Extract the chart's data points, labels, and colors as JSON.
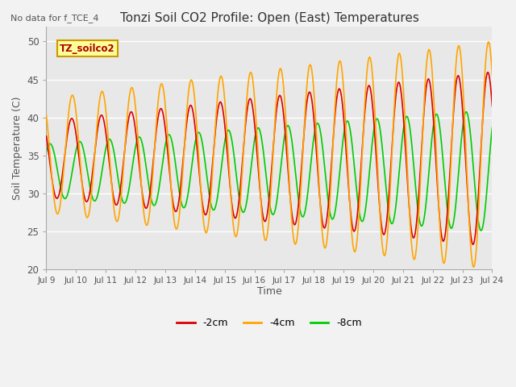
{
  "title": "Tonzi Soil CO2 Profile: Open (East) Temperatures",
  "subtitle": "No data for f_TCE_4",
  "ylabel": "Soil Temperature (C)",
  "xlabel": "Time",
  "legend_label": "TZ_soilco2",
  "ylim": [
    20,
    52
  ],
  "yticks": [
    20,
    25,
    30,
    35,
    40,
    45,
    50
  ],
  "start_day": 9,
  "end_day": 24,
  "n_points": 2000,
  "line_colors": {
    "-2cm": "#dd0000",
    "-4cm": "#ffa500",
    "-8cm": "#00cc00"
  },
  "line_labels": [
    "-2cm",
    "-4cm",
    "-8cm"
  ],
  "bg_color": "#e8e8e8",
  "legend_box_color": "#ffff99",
  "legend_box_edge": "#cc9900",
  "grid_color": "#ffffff",
  "tick_label_color": "#555555",
  "title_color": "#333333",
  "fig_bg_color": "#f2f2f2"
}
